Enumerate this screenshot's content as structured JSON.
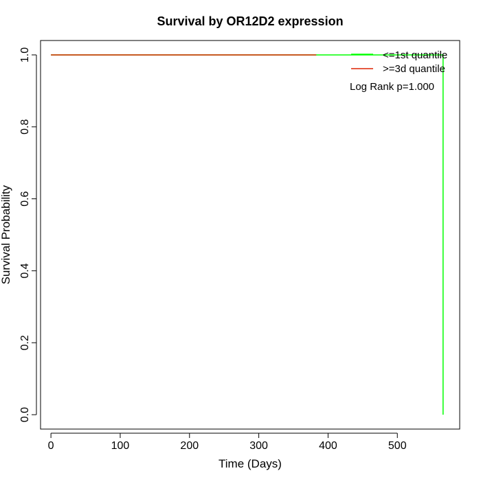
{
  "chart_data": {
    "type": "line",
    "title": "Survival by OR12D2 expression",
    "xlabel": "Time (Days)",
    "ylabel": "Survival Probability",
    "xlim": [
      -15,
      590
    ],
    "ylim": [
      -0.04,
      1.04
    ],
    "x_ticks": [
      0,
      100,
      200,
      300,
      400,
      500
    ],
    "y_ticks": [
      0.0,
      0.2,
      0.4,
      0.6,
      0.8,
      1.0
    ],
    "x_tick_labels": [
      "0",
      "100",
      "200",
      "300",
      "400",
      "500"
    ],
    "y_tick_labels": [
      "0.0",
      "0.2",
      "0.4",
      "0.6",
      "0.8",
      "1.0"
    ],
    "grid": false,
    "legend_position": "top-right",
    "annotation": "Log Rank p=1.000",
    "series": [
      {
        "name": "<=1st quantile",
        "color": "#00ff00",
        "x": [
          0,
          566,
          566
        ],
        "y": [
          1.0,
          1.0,
          0.0
        ]
      },
      {
        "name": ">=3d quantile",
        "color": "#dd2200",
        "x": [
          0,
          383
        ],
        "y": [
          1.0,
          1.0
        ]
      }
    ]
  }
}
